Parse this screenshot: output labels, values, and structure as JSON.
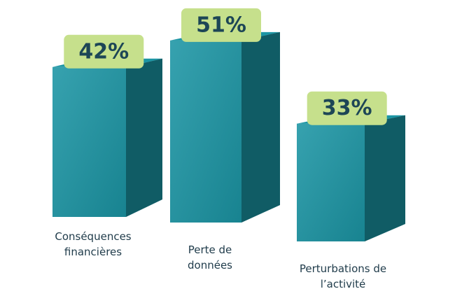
{
  "chart_data": {
    "type": "bar3d",
    "categories": [
      "Conséquences financières",
      "Perte de données",
      "Perturbations de l’activité"
    ],
    "values": [
      42,
      51,
      33
    ],
    "value_labels": [
      "42%",
      "51%",
      "33%"
    ],
    "color": "#1b95a4"
  }
}
